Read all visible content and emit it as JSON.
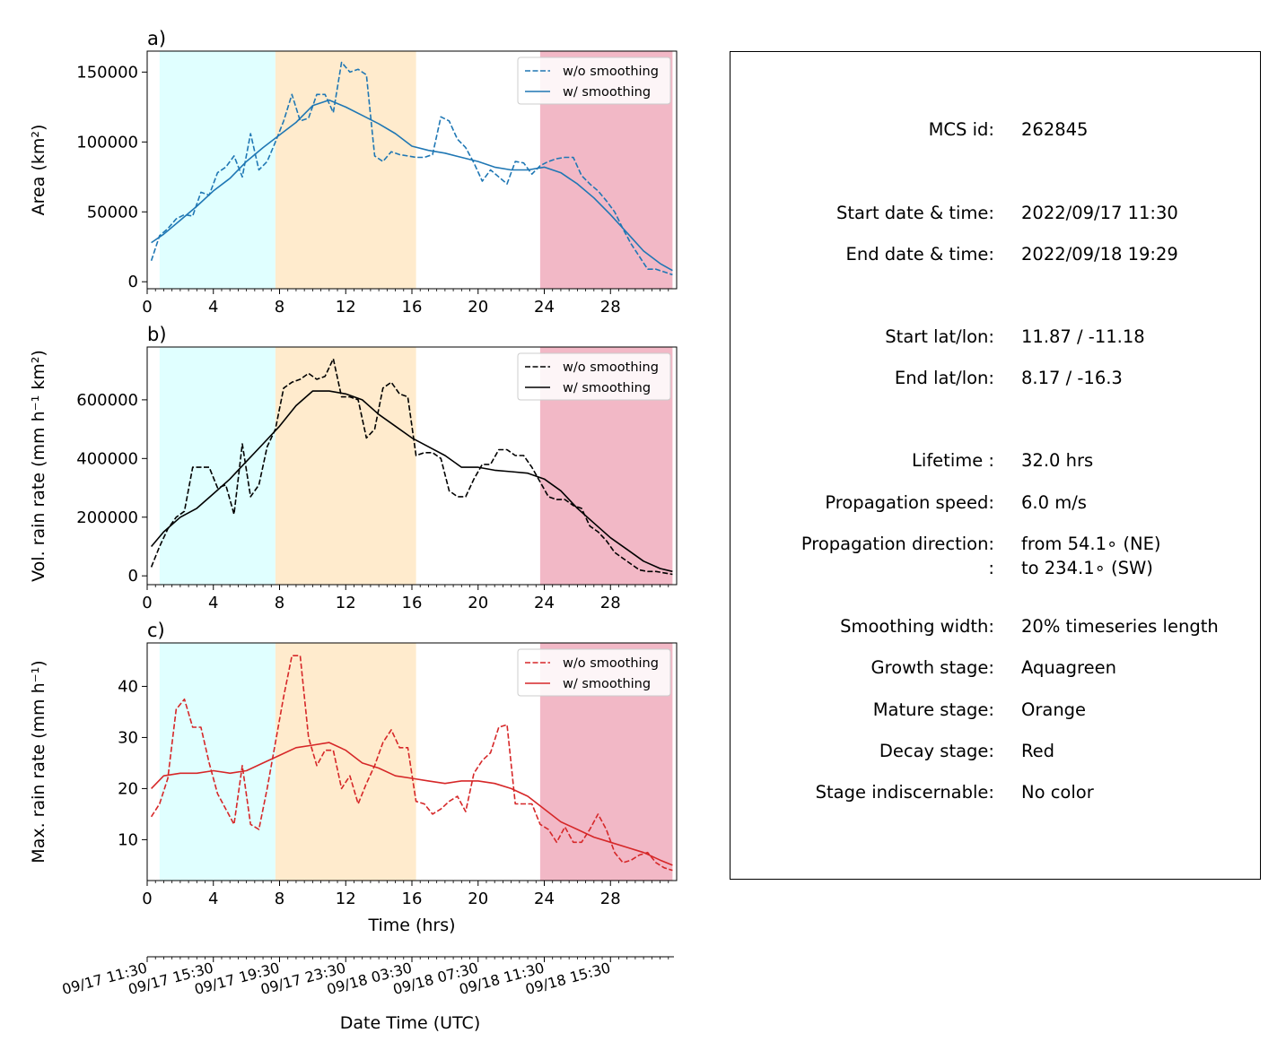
{
  "colors": {
    "growth": "#e0ffff",
    "mature": "#ffebcd",
    "decay": "#f2b8c6",
    "area": "#1f77b4",
    "volrain": "#000000",
    "maxrain": "#d62728"
  },
  "chart_data": [
    {
      "type": "line",
      "panel_label": "a)",
      "ylabel": "Area  (km²)",
      "ylim": [
        -5000,
        165000
      ],
      "yticks": [
        0,
        50000,
        100000,
        150000
      ],
      "ytick_labels": [
        "0",
        "50000",
        "100000",
        "150000"
      ],
      "xlim": [
        0,
        32
      ],
      "xticks": [
        0,
        4,
        8,
        12,
        16,
        20,
        24,
        28
      ],
      "xtick_labels": [
        "0",
        "4",
        "8",
        "12",
        "16",
        "20",
        "24",
        "28"
      ],
      "stages": [
        {
          "stage": "growth",
          "start": 0.75,
          "end": 7.75
        },
        {
          "stage": "mature",
          "start": 7.75,
          "end": 16.25
        },
        {
          "stage": "decay",
          "start": 23.75,
          "end": 31.75
        }
      ],
      "legend": {
        "location": "top-right",
        "entries": [
          "w/o smoothing",
          "w/ smoothing"
        ]
      },
      "series": [
        {
          "name": "w/o smoothing",
          "style": "dashed",
          "x": [
            0.25,
            0.75,
            1.25,
            1.75,
            2.25,
            2.75,
            3.25,
            3.75,
            4.25,
            4.75,
            5.25,
            5.75,
            6.25,
            6.75,
            7.25,
            7.75,
            8.25,
            8.75,
            9.25,
            9.75,
            10.25,
            10.75,
            11.25,
            11.75,
            12.25,
            12.75,
            13.25,
            13.75,
            14.25,
            14.75,
            15.25,
            15.75,
            16.25,
            16.75,
            17.25,
            17.75,
            18.25,
            18.75,
            19.25,
            19.75,
            20.25,
            20.75,
            21.25,
            21.75,
            22.25,
            22.75,
            23.25,
            23.75,
            24.25,
            24.75,
            25.25,
            25.75,
            26.25,
            26.75,
            27.25,
            27.75,
            28.25,
            28.75,
            29.25,
            29.75,
            30.25,
            30.75,
            31.25,
            31.75
          ],
          "y": [
            15000,
            33000,
            38000,
            45000,
            48000,
            47000,
            64000,
            62000,
            78000,
            82000,
            90000,
            75000,
            106000,
            80000,
            86000,
            100000,
            115000,
            134000,
            115000,
            117000,
            134000,
            134000,
            121000,
            157000,
            150000,
            152000,
            148000,
            90000,
            86000,
            93000,
            91000,
            90000,
            89000,
            89000,
            91000,
            118000,
            115000,
            102000,
            96000,
            85000,
            72000,
            80000,
            75000,
            70000,
            86000,
            85000,
            77000,
            83000,
            86000,
            88000,
            89000,
            89000,
            76000,
            70000,
            65000,
            58000,
            50000,
            38000,
            27000,
            18000,
            9000,
            9000,
            7000,
            5000
          ]
        },
        {
          "name": "w/ smoothing",
          "style": "solid",
          "x": [
            0.25,
            1,
            2,
            3,
            4,
            5,
            6,
            7,
            8,
            9,
            10,
            11,
            12,
            13,
            14,
            15,
            16,
            17,
            18,
            19,
            20,
            21,
            22,
            23,
            24,
            25,
            26,
            27,
            28,
            29,
            30,
            31,
            31.75
          ],
          "y": [
            28000,
            34000,
            44000,
            54000,
            65000,
            74000,
            86000,
            96000,
            105000,
            114000,
            126000,
            130000,
            125000,
            119000,
            113000,
            106000,
            97000,
            94000,
            92000,
            89000,
            86000,
            82000,
            80000,
            80000,
            82000,
            78000,
            70000,
            60000,
            48000,
            35000,
            22000,
            13000,
            8000
          ]
        }
      ]
    },
    {
      "type": "line",
      "panel_label": "b)",
      "ylabel": "Vol. rain rate (mm h⁻¹ km²)",
      "ylim": [
        -30000,
        780000
      ],
      "yticks": [
        0,
        200000,
        400000,
        600000
      ],
      "ytick_labels": [
        "0",
        "200000",
        "400000",
        "600000"
      ],
      "xlim": [
        0,
        32
      ],
      "xticks": [
        0,
        4,
        8,
        12,
        16,
        20,
        24,
        28
      ],
      "xtick_labels": [
        "0",
        "4",
        "8",
        "12",
        "16",
        "20",
        "24",
        "28"
      ],
      "stages": [
        {
          "stage": "growth",
          "start": 0.75,
          "end": 7.75
        },
        {
          "stage": "mature",
          "start": 7.75,
          "end": 16.25
        },
        {
          "stage": "decay",
          "start": 23.75,
          "end": 31.75
        }
      ],
      "legend": {
        "location": "top-right",
        "entries": [
          "w/o smoothing",
          "w/ smoothing"
        ]
      },
      "series": [
        {
          "name": "w/o smoothing",
          "style": "dashed",
          "x": [
            0.25,
            0.75,
            1.25,
            1.75,
            2.25,
            2.75,
            3.25,
            3.75,
            4.25,
            4.75,
            5.25,
            5.75,
            6.25,
            6.75,
            7.25,
            7.75,
            8.25,
            8.75,
            9.25,
            9.75,
            10.25,
            10.75,
            11.25,
            11.75,
            12.25,
            12.75,
            13.25,
            13.75,
            14.25,
            14.75,
            15.25,
            15.75,
            16.25,
            16.75,
            17.25,
            17.75,
            18.25,
            18.75,
            19.25,
            19.75,
            20.25,
            20.75,
            21.25,
            21.75,
            22.25,
            22.75,
            23.25,
            23.75,
            24.25,
            24.75,
            25.25,
            25.75,
            26.25,
            26.75,
            27.25,
            27.75,
            28.25,
            28.75,
            29.25,
            29.75,
            30.25,
            30.75,
            31.25,
            31.75
          ],
          "y": [
            30000,
            100000,
            160000,
            200000,
            220000,
            370000,
            370000,
            370000,
            300000,
            310000,
            210000,
            450000,
            270000,
            310000,
            440000,
            500000,
            640000,
            660000,
            670000,
            690000,
            670000,
            680000,
            740000,
            610000,
            610000,
            600000,
            470000,
            500000,
            640000,
            660000,
            620000,
            610000,
            410000,
            420000,
            420000,
            400000,
            290000,
            270000,
            270000,
            330000,
            380000,
            380000,
            430000,
            430000,
            410000,
            410000,
            370000,
            320000,
            270000,
            260000,
            260000,
            240000,
            230000,
            170000,
            150000,
            120000,
            80000,
            60000,
            40000,
            20000,
            15000,
            15000,
            10000,
            5000
          ]
        },
        {
          "name": "w/ smoothing",
          "style": "solid",
          "x": [
            0.25,
            1,
            2,
            3,
            4,
            5,
            6,
            7,
            8,
            9,
            10,
            11,
            12,
            13,
            14,
            15,
            16,
            17,
            18,
            19,
            20,
            21,
            22,
            23,
            24,
            25,
            26,
            27,
            28,
            29,
            30,
            31,
            31.75
          ],
          "y": [
            100000,
            150000,
            200000,
            230000,
            280000,
            330000,
            390000,
            450000,
            510000,
            580000,
            630000,
            630000,
            620000,
            600000,
            550000,
            510000,
            470000,
            440000,
            410000,
            370000,
            370000,
            360000,
            355000,
            350000,
            330000,
            290000,
            230000,
            180000,
            130000,
            90000,
            50000,
            25000,
            15000
          ]
        }
      ]
    },
    {
      "type": "line",
      "panel_label": "c)",
      "ylabel": "Max. rain rate  (mm h⁻¹)",
      "xlabel": "Time (hrs)",
      "ylim": [
        2,
        48.5
      ],
      "yticks": [
        10,
        20,
        30,
        40
      ],
      "ytick_labels": [
        "10",
        "20",
        "30",
        "40"
      ],
      "xlim": [
        0,
        32
      ],
      "xticks": [
        0,
        4,
        8,
        12,
        16,
        20,
        24,
        28
      ],
      "xtick_labels": [
        "0",
        "4",
        "8",
        "12",
        "16",
        "20",
        "24",
        "28"
      ],
      "stages": [
        {
          "stage": "growth",
          "start": 0.75,
          "end": 7.75
        },
        {
          "stage": "mature",
          "start": 7.75,
          "end": 16.25
        },
        {
          "stage": "decay",
          "start": 23.75,
          "end": 31.75
        }
      ],
      "legend": {
        "location": "top-right",
        "entries": [
          "w/o smoothing",
          "w/ smoothing"
        ]
      },
      "series": [
        {
          "name": "w/o smoothing",
          "style": "dashed",
          "x": [
            0.25,
            0.75,
            1.25,
            1.75,
            2.25,
            2.75,
            3.25,
            3.75,
            4.25,
            4.75,
            5.25,
            5.75,
            6.25,
            6.75,
            7.25,
            7.75,
            8.25,
            8.75,
            9.25,
            9.75,
            10.25,
            10.75,
            11.25,
            11.75,
            12.25,
            12.75,
            13.25,
            13.75,
            14.25,
            14.75,
            15.25,
            15.75,
            16.25,
            16.75,
            17.25,
            17.75,
            18.25,
            18.75,
            19.25,
            19.75,
            20.25,
            20.75,
            21.25,
            21.75,
            22.25,
            22.75,
            23.25,
            23.75,
            24.25,
            24.75,
            25.25,
            25.75,
            26.25,
            26.75,
            27.25,
            27.75,
            28.25,
            28.75,
            29.25,
            29.75,
            30.25,
            30.75,
            31.25,
            31.75
          ],
          "y": [
            14.5,
            17,
            22,
            35.5,
            37.5,
            32,
            32,
            25,
            19,
            16,
            13,
            24.5,
            13,
            12,
            20,
            29,
            38,
            46,
            46,
            30,
            24.5,
            27.5,
            27.5,
            20,
            22.5,
            17,
            21,
            24.5,
            29,
            31.5,
            28,
            28,
            17.5,
            17,
            15,
            16,
            17.5,
            18.5,
            15.5,
            23,
            25.5,
            27,
            32,
            32.5,
            17,
            17,
            17,
            13,
            12,
            9.5,
            12.5,
            9.5,
            9.5,
            12,
            15,
            12,
            7.5,
            5.5,
            6,
            7,
            7.5,
            5.5,
            4.5,
            4
          ]
        },
        {
          "name": "w/ smoothing",
          "style": "solid",
          "x": [
            0.25,
            1,
            2,
            3,
            4,
            5,
            6,
            7,
            8,
            9,
            10,
            11,
            12,
            13,
            14,
            15,
            16,
            17,
            18,
            19,
            20,
            21,
            22,
            23,
            24,
            25,
            26,
            27,
            28,
            29,
            30,
            31,
            31.75
          ],
          "y": [
            20,
            22.5,
            23,
            23,
            23.5,
            23,
            23.5,
            25,
            26.5,
            28,
            28.5,
            29,
            27.5,
            25,
            24,
            22.5,
            22,
            21.5,
            21,
            21.5,
            21.5,
            21,
            20,
            18.5,
            16,
            13.5,
            12,
            10.5,
            9.5,
            8.5,
            7.5,
            6,
            5
          ]
        }
      ]
    }
  ],
  "datetime_axis": {
    "xlabel": "Date Time (UTC)",
    "tick_hours": [
      0,
      4,
      8,
      12,
      16,
      20,
      24,
      28
    ],
    "tick_labels": [
      "09/17 11:30",
      "09/17 15:30",
      "09/17 19:30",
      "09/17 23:30",
      "09/18 03:30",
      "09/18 07:30",
      "09/18 11:30",
      "09/18 15:30"
    ]
  },
  "info_panel": {
    "rows": [
      {
        "label": "MCS id:",
        "value": "262845"
      },
      {
        "label": "Start date & time:",
        "value": "2022/09/17 11:30"
      },
      {
        "label": "End date & time:",
        "value": "2022/09/18 19:29"
      },
      {
        "label": "Start lat/lon:",
        "value": "11.87 / -11.18"
      },
      {
        "label": "End lat/lon:",
        "value": "8.17 / -16.3"
      },
      {
        "label": "Lifetime :",
        "value": "32.0 hrs"
      },
      {
        "label": "Propagation speed:",
        "value": "6.0 m/s"
      },
      {
        "label": "Propagation direction:",
        "value": "from  54.1∘ (NE)"
      },
      {
        "label": ":",
        "value": "to   234.1∘ (SW)"
      },
      {
        "label": "Smoothing width:",
        "value": "20% timeseries length"
      },
      {
        "label": "Growth stage:",
        "value": "Aquagreen"
      },
      {
        "label": "Mature stage:",
        "value": "Orange"
      },
      {
        "label": "Decay stage:",
        "value": "Red"
      },
      {
        "label": "Stage indiscernable:",
        "value": "No color"
      }
    ]
  }
}
